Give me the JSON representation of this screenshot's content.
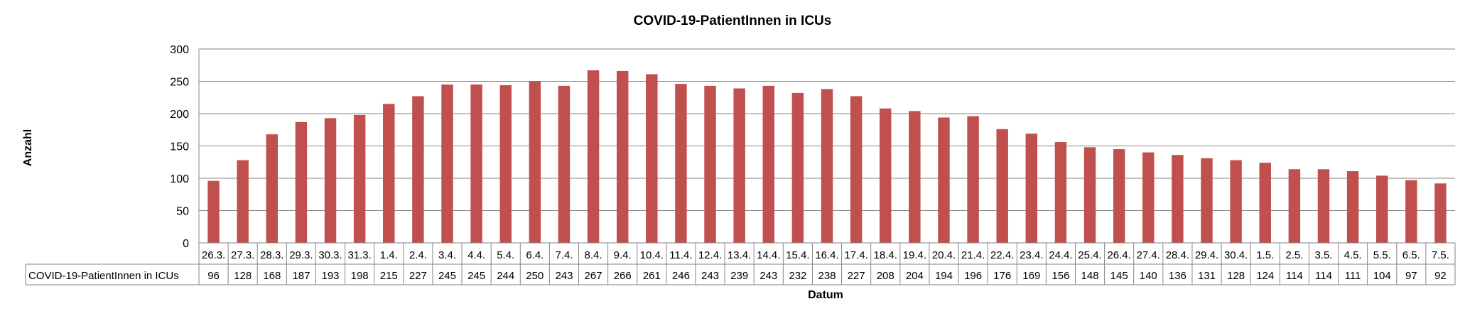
{
  "chart_data": {
    "type": "bar",
    "title": "COVID-19-PatientInnen in ICUs",
    "xlabel": "Datum",
    "ylabel": "Anzahl",
    "ylim": [
      0,
      300
    ],
    "yticks": [
      "0",
      "50",
      "100",
      "150",
      "200",
      "250",
      "300"
    ],
    "grid": true,
    "legend": "data-table",
    "categories": [
      "26.3.",
      "27.3.",
      "28.3.",
      "29.3.",
      "30.3.",
      "31.3.",
      "1.4.",
      "2.4.",
      "3.4.",
      "4.4.",
      "5.4.",
      "6.4.",
      "7.4.",
      "8.4.",
      "9.4.",
      "10.4.",
      "11.4.",
      "12.4.",
      "13.4.",
      "14.4.",
      "15.4.",
      "16.4.",
      "17.4.",
      "18.4.",
      "19.4.",
      "20.4.",
      "21.4.",
      "22.4.",
      "23.4.",
      "24.4.",
      "25.4.",
      "26.4.",
      "27.4.",
      "28.4.",
      "29.4.",
      "30.4.",
      "1.5.",
      "2.5.",
      "3.5.",
      "4.5.",
      "5.5.",
      "6.5.",
      "7.5."
    ],
    "series": [
      {
        "name": "COVID-19-PatientInnen in ICUs",
        "color": "#c0504d",
        "values": [
          96,
          128,
          168,
          187,
          193,
          198,
          215,
          227,
          245,
          245,
          244,
          250,
          243,
          267,
          266,
          261,
          246,
          243,
          239,
          243,
          232,
          238,
          227,
          208,
          204,
          194,
          196,
          176,
          169,
          156,
          148,
          145,
          140,
          136,
          131,
          128,
          124,
          114,
          114,
          111,
          104,
          97,
          92
        ]
      }
    ]
  }
}
